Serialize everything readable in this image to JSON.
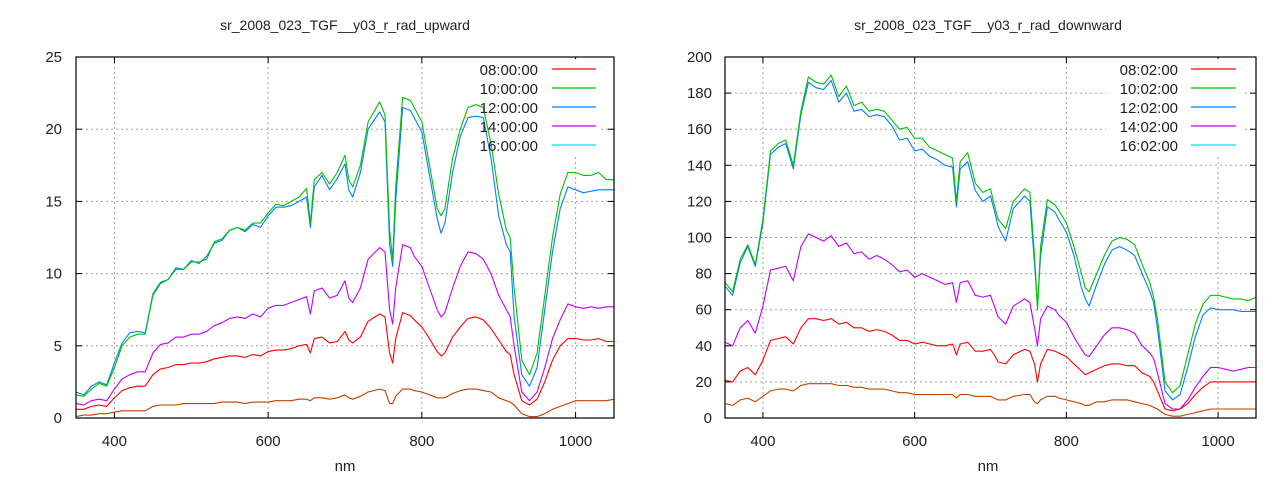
{
  "chart_data": [
    {
      "type": "line",
      "title": "sr_2008_023_TGF__y03_r_rad_upward",
      "xlabel": "nm",
      "ylabel": "",
      "xlim": [
        350,
        1050
      ],
      "ylim": [
        0,
        25
      ],
      "xticks": [
        400,
        600,
        800,
        1000
      ],
      "yticks": [
        0,
        5,
        10,
        15,
        20,
        25
      ],
      "grid": true,
      "legend_position": "top-right",
      "x": [
        350,
        360,
        370,
        380,
        390,
        400,
        410,
        420,
        430,
        440,
        450,
        460,
        470,
        480,
        490,
        500,
        510,
        520,
        530,
        540,
        550,
        560,
        570,
        580,
        590,
        600,
        610,
        620,
        630,
        640,
        650,
        655,
        660,
        670,
        680,
        690,
        700,
        705,
        710,
        720,
        730,
        745,
        752,
        758,
        762,
        766,
        775,
        785,
        790,
        800,
        810,
        820,
        825,
        830,
        840,
        850,
        860,
        870,
        880,
        890,
        900,
        910,
        915,
        920,
        930,
        940,
        950,
        960,
        970,
        980,
        990,
        1000,
        1010,
        1020,
        1030,
        1040,
        1050
      ],
      "series": [
        {
          "name": "08:00:00",
          "legend_color": "#ff0000",
          "line_color": "#ff0000",
          "values": [
            0.6,
            0.6,
            0.8,
            0.9,
            0.8,
            1.4,
            1.9,
            2.1,
            2.2,
            2.2,
            3.0,
            3.4,
            3.5,
            3.7,
            3.7,
            3.8,
            3.8,
            3.9,
            4.1,
            4.2,
            4.3,
            4.3,
            4.2,
            4.4,
            4.3,
            4.6,
            4.7,
            4.7,
            4.8,
            5.0,
            5.1,
            4.5,
            5.5,
            5.6,
            5.2,
            5.3,
            6.0,
            5.4,
            5.2,
            5.6,
            6.7,
            7.2,
            7.0,
            4.5,
            3.8,
            5.5,
            7.3,
            7.1,
            6.8,
            6.3,
            5.5,
            4.6,
            4.3,
            4.5,
            5.6,
            6.3,
            6.9,
            7.0,
            6.8,
            6.2,
            5.4,
            4.6,
            4.4,
            3.0,
            1.2,
            0.9,
            1.3,
            2.5,
            4.0,
            5.0,
            5.5,
            5.5,
            5.4,
            5.4,
            5.5,
            5.3,
            5.3
          ]
        },
        {
          "name": "10:00:00",
          "legend_color": "#00c000",
          "line_color": "#00c000",
          "values": [
            1.6,
            1.5,
            2.0,
            2.4,
            2.2,
            3.5,
            5.0,
            5.6,
            5.8,
            5.8,
            8.5,
            9.3,
            9.6,
            10.3,
            10.3,
            10.8,
            10.8,
            11.0,
            12.2,
            12.4,
            13.0,
            13.2,
            13.0,
            13.5,
            13.5,
            14.2,
            14.8,
            14.7,
            15.0,
            15.3,
            15.9,
            13.5,
            16.5,
            17.0,
            16.2,
            17.0,
            18.2,
            16.5,
            16.0,
            17.5,
            20.5,
            21.9,
            21.0,
            13.0,
            11.0,
            16.0,
            22.2,
            22.0,
            21.5,
            20.5,
            17.5,
            14.5,
            14.0,
            14.5,
            18.0,
            20.0,
            21.5,
            21.7,
            21.5,
            19.0,
            15.5,
            13.0,
            12.5,
            9.0,
            4.0,
            3.0,
            4.5,
            8.5,
            12.5,
            15.5,
            17.0,
            17.0,
            16.8,
            16.8,
            17.0,
            16.5,
            16.5
          ]
        },
        {
          "name": "12:00:00",
          "legend_color": "#0080ff",
          "line_color": "#0080ff",
          "values": [
            1.8,
            1.6,
            2.2,
            2.5,
            2.3,
            3.8,
            5.2,
            5.9,
            6.0,
            5.9,
            8.6,
            9.4,
            9.6,
            10.4,
            10.3,
            10.9,
            10.7,
            11.2,
            12.1,
            12.3,
            13.0,
            13.2,
            12.9,
            13.4,
            13.2,
            14.0,
            14.6,
            14.6,
            14.7,
            15.0,
            15.3,
            13.2,
            16.0,
            16.8,
            15.8,
            16.6,
            17.6,
            15.8,
            15.3,
            17.0,
            20.0,
            21.2,
            20.5,
            12.0,
            10.5,
            15.0,
            21.5,
            21.3,
            20.8,
            19.8,
            16.8,
            13.8,
            12.8,
            13.5,
            17.0,
            19.5,
            20.8,
            20.9,
            20.8,
            18.0,
            14.0,
            12.0,
            11.5,
            7.0,
            3.0,
            2.2,
            3.5,
            7.5,
            11.5,
            14.5,
            16.0,
            15.8,
            15.6,
            15.7,
            15.8,
            15.8,
            15.8
          ]
        },
        {
          "name": "14:00:00",
          "legend_color": "#c000ff",
          "line_color": "#c000ff",
          "values": [
            1.0,
            0.9,
            1.2,
            1.3,
            1.2,
            2.0,
            2.7,
            3.0,
            3.2,
            3.2,
            4.5,
            5.1,
            5.2,
            5.6,
            5.6,
            5.8,
            5.8,
            6.0,
            6.4,
            6.6,
            6.9,
            7.0,
            6.9,
            7.2,
            7.0,
            7.6,
            7.8,
            7.8,
            8.0,
            8.2,
            8.4,
            7.2,
            8.8,
            9.0,
            8.3,
            8.5,
            9.5,
            8.3,
            8.0,
            9.0,
            11.0,
            11.8,
            11.5,
            7.5,
            6.5,
            9.0,
            12.0,
            11.8,
            11.2,
            10.5,
            9.0,
            7.5,
            7.0,
            7.3,
            9.0,
            10.5,
            11.5,
            11.4,
            11.0,
            10.0,
            8.5,
            7.5,
            7.0,
            5.0,
            1.8,
            1.2,
            1.8,
            3.5,
            5.5,
            6.8,
            7.9,
            7.7,
            7.6,
            7.7,
            7.6,
            7.7,
            7.7
          ]
        },
        {
          "name": "16:00:00",
          "legend_color": "#00e0e0",
          "line_color": "#c04000",
          "values": [
            0.1,
            0.2,
            0.2,
            0.3,
            0.3,
            0.4,
            0.5,
            0.5,
            0.5,
            0.5,
            0.8,
            0.9,
            0.9,
            0.9,
            1.0,
            1.0,
            1.0,
            1.0,
            1.0,
            1.1,
            1.1,
            1.1,
            1.0,
            1.1,
            1.1,
            1.1,
            1.2,
            1.2,
            1.2,
            1.3,
            1.3,
            1.2,
            1.4,
            1.4,
            1.3,
            1.4,
            1.6,
            1.4,
            1.3,
            1.5,
            1.8,
            2.0,
            1.9,
            1.0,
            1.0,
            1.5,
            2.0,
            2.0,
            1.9,
            1.8,
            1.6,
            1.4,
            1.4,
            1.4,
            1.7,
            1.9,
            2.0,
            2.0,
            1.9,
            1.8,
            1.4,
            1.2,
            1.1,
            0.9,
            0.3,
            0.1,
            0.1,
            0.3,
            0.6,
            0.8,
            1.0,
            1.2,
            1.2,
            1.2,
            1.2,
            1.2,
            1.3
          ]
        }
      ]
    },
    {
      "type": "line",
      "title": "sr_2008_023_TGF__y03_r_rad_downward",
      "xlabel": "nm",
      "ylabel": "",
      "xlim": [
        350,
        1050
      ],
      "ylim": [
        0,
        200
      ],
      "xticks": [
        400,
        600,
        800,
        1000
      ],
      "yticks": [
        0,
        20,
        40,
        60,
        80,
        100,
        120,
        140,
        160,
        180,
        200
      ],
      "grid": true,
      "legend_position": "top-right",
      "x": [
        350,
        360,
        370,
        380,
        390,
        400,
        410,
        420,
        430,
        440,
        450,
        460,
        470,
        480,
        490,
        500,
        510,
        520,
        530,
        540,
        550,
        560,
        570,
        580,
        590,
        600,
        610,
        620,
        630,
        640,
        650,
        655,
        660,
        670,
        680,
        690,
        700,
        705,
        710,
        720,
        730,
        745,
        752,
        758,
        762,
        766,
        775,
        785,
        790,
        800,
        810,
        820,
        825,
        830,
        840,
        850,
        860,
        870,
        880,
        890,
        900,
        910,
        915,
        920,
        930,
        940,
        950,
        960,
        970,
        980,
        990,
        1000,
        1010,
        1020,
        1030,
        1040,
        1050
      ],
      "series": [
        {
          "name": "08:02:00",
          "legend_color": "#ff0000",
          "line_color": "#ff0000",
          "values": [
            21,
            20,
            26,
            28,
            24,
            32,
            43,
            44,
            45,
            41,
            50,
            55,
            55,
            54,
            55,
            52,
            53,
            50,
            50,
            48,
            49,
            48,
            46,
            43,
            43,
            41,
            42,
            41,
            40,
            40,
            41,
            35,
            41,
            42,
            37,
            37,
            38,
            35,
            31,
            30,
            35,
            38,
            37,
            30,
            20,
            30,
            38,
            37,
            36,
            34,
            30,
            26,
            24,
            25,
            27,
            29,
            30,
            30,
            29,
            29,
            25,
            23,
            20,
            15,
            5,
            4,
            5,
            8,
            13,
            17,
            20,
            20,
            20,
            20,
            20,
            20,
            20
          ]
        },
        {
          "name": "10:02:00",
          "legend_color": "#00c000",
          "line_color": "#00c000",
          "values": [
            75,
            70,
            88,
            96,
            85,
            110,
            148,
            152,
            154,
            140,
            170,
            189,
            186,
            185,
            190,
            178,
            184,
            173,
            175,
            170,
            171,
            170,
            165,
            160,
            161,
            155,
            155,
            150,
            148,
            146,
            144,
            120,
            142,
            147,
            130,
            125,
            127,
            118,
            110,
            105,
            120,
            127,
            125,
            90,
            60,
            95,
            121,
            118,
            115,
            108,
            95,
            80,
            72,
            70,
            80,
            90,
            98,
            100,
            99,
            96,
            85,
            75,
            67,
            55,
            20,
            14,
            18,
            35,
            52,
            63,
            68,
            68,
            67,
            66,
            66,
            65,
            67
          ]
        },
        {
          "name": "12:02:00",
          "legend_color": "#0080ff",
          "line_color": "#0080ff",
          "values": [
            73,
            68,
            86,
            95,
            84,
            108,
            146,
            150,
            152,
            138,
            168,
            186,
            183,
            182,
            187,
            175,
            180,
            170,
            171,
            167,
            168,
            167,
            162,
            154,
            155,
            148,
            149,
            145,
            143,
            140,
            139,
            117,
            138,
            142,
            126,
            120,
            123,
            115,
            106,
            98,
            116,
            123,
            120,
            85,
            62,
            90,
            117,
            114,
            110,
            103,
            90,
            72,
            66,
            62,
            74,
            85,
            93,
            95,
            93,
            90,
            80,
            70,
            64,
            50,
            15,
            10,
            13,
            28,
            45,
            57,
            61,
            60,
            60,
            60,
            59,
            59,
            59
          ]
        },
        {
          "name": "14:02:00",
          "legend_color": "#c000ff",
          "line_color": "#c000ff",
          "values": [
            42,
            40,
            50,
            54,
            47,
            62,
            82,
            83,
            84,
            76,
            95,
            102,
            100,
            98,
            101,
            95,
            97,
            91,
            92,
            88,
            90,
            88,
            85,
            81,
            82,
            78,
            80,
            78,
            76,
            74,
            75,
            64,
            75,
            76,
            68,
            67,
            68,
            62,
            56,
            52,
            62,
            66,
            64,
            50,
            40,
            55,
            62,
            60,
            57,
            53,
            45,
            38,
            35,
            34,
            40,
            46,
            50,
            50,
            49,
            47,
            40,
            36,
            33,
            25,
            8,
            5,
            5,
            10,
            17,
            23,
            28,
            28,
            27,
            26,
            27,
            28,
            28
          ]
        },
        {
          "name": "16:02:00",
          "legend_color": "#00e0e0",
          "line_color": "#c04000",
          "values": [
            8,
            7,
            10,
            11,
            9,
            12,
            15,
            16,
            16,
            15,
            18,
            19,
            19,
            19,
            19,
            18,
            18,
            17,
            17,
            16,
            16,
            16,
            15,
            14,
            14,
            13,
            13,
            13,
            13,
            13,
            13,
            11,
            13,
            13,
            12,
            12,
            12,
            11,
            10,
            10,
            12,
            13,
            13,
            9,
            8,
            10,
            12,
            12,
            11,
            10,
            9,
            8,
            7,
            7,
            9,
            9,
            10,
            10,
            10,
            9,
            8,
            7,
            6,
            5,
            2,
            1,
            1,
            2,
            3,
            4,
            5,
            5,
            5,
            5,
            5,
            5,
            5
          ]
        }
      ]
    }
  ]
}
